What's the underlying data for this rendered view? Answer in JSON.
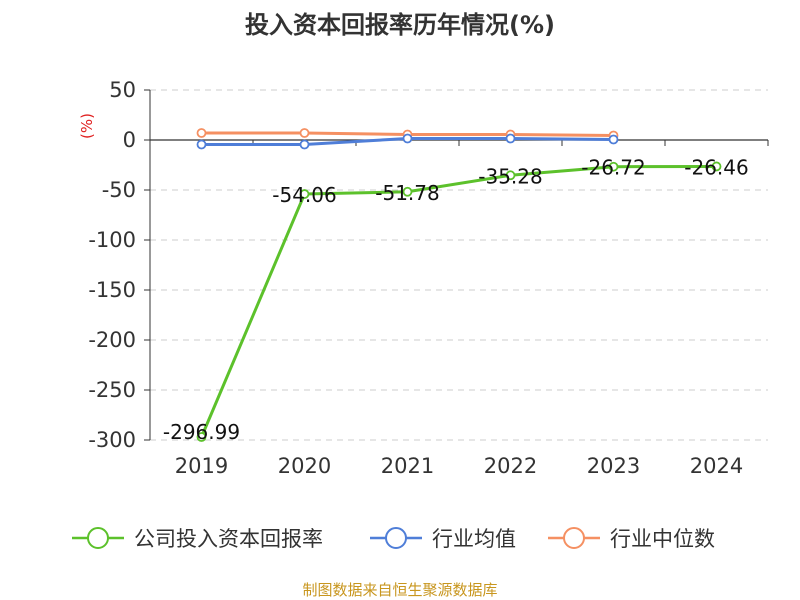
{
  "chart_data": {
    "type": "line",
    "title": "投入资本回报率历年情况(%)",
    "unit": "(%)",
    "categories": [
      "2019",
      "2020",
      "2021",
      "2022",
      "2023",
      "2024"
    ],
    "ylim": [
      -300,
      50
    ],
    "yticks": [
      50,
      0,
      -50,
      -100,
      -150,
      -200,
      -250,
      -300
    ],
    "ytick_labels": [
      "50",
      "0",
      "-50",
      "-100",
      "-150",
      "-200",
      "-250",
      "-300"
    ],
    "grid": true,
    "legend_position": "bottom",
    "series": [
      {
        "name": "公司投入资本回报率",
        "color": "#5cc12b",
        "values": [
          -296.99,
          -54.06,
          -51.78,
          -35.28,
          -26.72,
          -26.46
        ],
        "data_labels": [
          "-296.99",
          "-54.06",
          "-51.78",
          "-35.28",
          "-26.72",
          "-26.46"
        ]
      },
      {
        "name": "行业均值",
        "color": "#4f7ed8",
        "values": [
          -4.5,
          -4.5,
          1.5,
          1.5,
          0.5,
          null
        ],
        "data_labels": []
      },
      {
        "name": "行业中位数",
        "color": "#f59062",
        "values": [
          7.0,
          7.0,
          5.5,
          5.5,
          4.5,
          null
        ],
        "data_labels": []
      }
    ],
    "source": "制图数据来自恒生聚源数据库"
  }
}
